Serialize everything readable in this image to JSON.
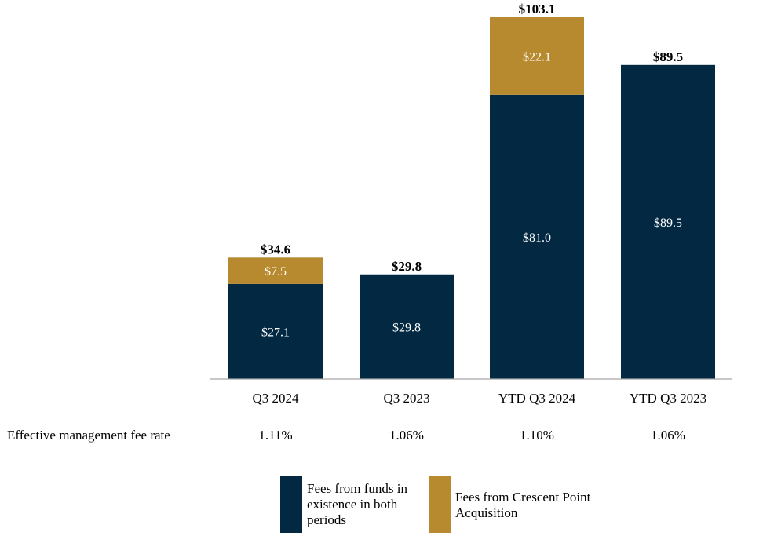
{
  "chart_data": {
    "type": "bar",
    "stacked": true,
    "categories": [
      "Q3 2024",
      "Q3 2023",
      "YTD Q3 2024",
      "YTD Q3 2023"
    ],
    "series": [
      {
        "name": "Fees from funds in existence in both periods",
        "color": "#022842",
        "values": [
          27.1,
          29.8,
          81.0,
          89.5
        ],
        "labels": [
          "$27.1",
          "$29.8",
          "$81.0",
          "$89.5"
        ]
      },
      {
        "name": "Fees from Crescent Point Acquisition",
        "color": "#b88a30",
        "values": [
          7.5,
          0,
          22.1,
          0
        ],
        "labels": [
          "$7.5",
          "",
          "$22.1",
          ""
        ]
      }
    ],
    "totals": [
      "$34.6",
      "$29.8",
      "$103.1",
      "$89.5"
    ],
    "ylim": [
      0,
      103.1
    ],
    "title": "",
    "xlabel": "",
    "ylabel": ""
  },
  "rates": {
    "title": "Effective management fee rate",
    "values": [
      "1.11%",
      "1.06%",
      "1.10%",
      "1.06%"
    ]
  },
  "legend": {
    "base": "Fees from funds in existence in both periods",
    "acquisition": "Fees from Crescent Point Acquisition"
  }
}
